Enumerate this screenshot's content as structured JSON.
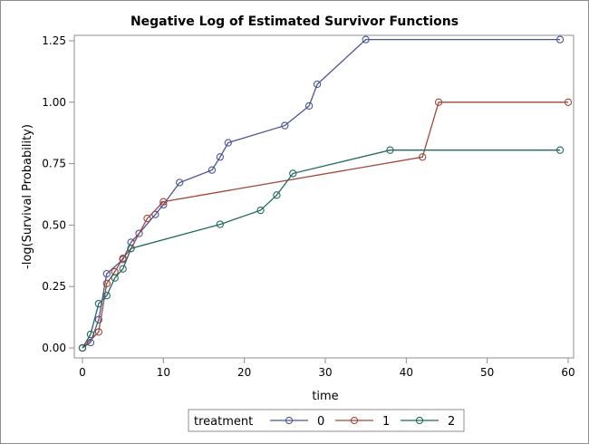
{
  "chart_data": {
    "type": "line",
    "title": "Negative Log of Estimated Survivor Functions",
    "xlabel": "time",
    "ylabel": "-log(Survival Probability)",
    "xlim": [
      0,
      60
    ],
    "ylim": [
      0,
      1.25
    ],
    "x_ticks": [
      0,
      10,
      20,
      30,
      40,
      50,
      60
    ],
    "y_ticks": [
      0.0,
      0.25,
      0.5,
      0.75,
      1.0,
      1.25
    ],
    "x_tick_labels": [
      "0",
      "10",
      "20",
      "30",
      "40",
      "50",
      "60"
    ],
    "y_tick_labels": [
      "0.00",
      "0.25",
      "0.50",
      "0.75",
      "1.00",
      "1.25"
    ],
    "grid": false,
    "legend": {
      "title": "treatment",
      "placement": "bottom-center"
    },
    "series": [
      {
        "name": "0",
        "color": "#4a5596",
        "marker": "circle",
        "points": [
          [
            0,
            0.0
          ],
          [
            1,
            0.022
          ],
          [
            2,
            0.115
          ],
          [
            3,
            0.302
          ],
          [
            5,
            0.36
          ],
          [
            6,
            0.43
          ],
          [
            7,
            0.466
          ],
          [
            9,
            0.543
          ],
          [
            10,
            0.583
          ],
          [
            12,
            0.673
          ],
          [
            16,
            0.724
          ],
          [
            17,
            0.777
          ],
          [
            18,
            0.835
          ],
          [
            25,
            0.905
          ],
          [
            28,
            0.985
          ],
          [
            29,
            1.073
          ],
          [
            35,
            1.255
          ],
          [
            59,
            1.255
          ]
        ]
      },
      {
        "name": "1",
        "color": "#a0473d",
        "marker": "circle",
        "points": [
          [
            0,
            0.0
          ],
          [
            2,
            0.065
          ],
          [
            3,
            0.262
          ],
          [
            4,
            0.31
          ],
          [
            5,
            0.365
          ],
          [
            6,
            0.405
          ],
          [
            8,
            0.527
          ],
          [
            10,
            0.595
          ],
          [
            42,
            0.777
          ],
          [
            44,
            1.0
          ],
          [
            60,
            1.0
          ]
        ]
      },
      {
        "name": "2",
        "color": "#226a5f",
        "marker": "circle",
        "points": [
          [
            0,
            0.0
          ],
          [
            1,
            0.055
          ],
          [
            2,
            0.18
          ],
          [
            3,
            0.213
          ],
          [
            4,
            0.285
          ],
          [
            5,
            0.322
          ],
          [
            6,
            0.405
          ],
          [
            17,
            0.503
          ],
          [
            22,
            0.56
          ],
          [
            24,
            0.622
          ],
          [
            26,
            0.71
          ],
          [
            38,
            0.805
          ],
          [
            59,
            0.805
          ]
        ]
      }
    ]
  }
}
